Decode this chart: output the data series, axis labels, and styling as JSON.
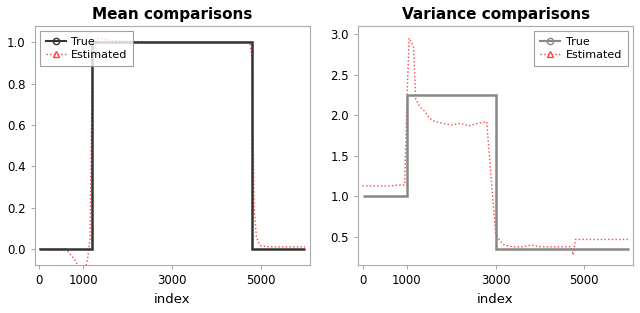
{
  "left_title": "Mean comparisons",
  "right_title": "Variance comparisons",
  "xlabel": "index",
  "xmax": 6000,
  "xlim": [
    -100,
    6100
  ],
  "xticks": [
    0,
    1000,
    3000,
    5000
  ],
  "mean_true_x": [
    0,
    1200,
    1200,
    4800,
    4800,
    6000
  ],
  "mean_true_y": [
    0.0,
    0.0,
    1.0,
    1.0,
    0.0,
    0.0
  ],
  "mean_ylim": [
    -0.08,
    1.08
  ],
  "mean_yticks": [
    0.0,
    0.2,
    0.4,
    0.6,
    0.8,
    1.0
  ],
  "mean_est_x": [
    0,
    100,
    300,
    600,
    800,
    900,
    1000,
    1050,
    1100,
    1150,
    1200,
    1300,
    1400,
    1600,
    2000,
    2500,
    3000,
    3500,
    4000,
    4500,
    4700,
    4750,
    4800,
    4850,
    4900,
    4950,
    5000,
    5100,
    5200,
    5500,
    5800,
    6000
  ],
  "mean_est_y": [
    0.0,
    0.0,
    0.0,
    0.0,
    -0.05,
    -0.09,
    -0.11,
    -0.09,
    -0.04,
    0.05,
    0.9,
    1.02,
    1.02,
    1.01,
    1.005,
    1.002,
    1.0,
    1.0,
    1.0,
    1.0,
    1.0,
    1.0,
    0.93,
    0.2,
    0.06,
    0.03,
    0.015,
    0.012,
    0.01,
    0.01,
    0.01,
    0.01
  ],
  "var_true_x": [
    0,
    1000,
    1000,
    3000,
    3000,
    6000
  ],
  "var_true_y": [
    1.0,
    1.0,
    2.25,
    2.25,
    0.35,
    0.35
  ],
  "var_ylim": [
    0.15,
    3.1
  ],
  "var_yticks": [
    0.5,
    1.0,
    1.5,
    2.0,
    2.5,
    3.0
  ],
  "var_est_x": [
    0,
    200,
    400,
    600,
    800,
    950,
    1000,
    1050,
    1100,
    1150,
    1200,
    1300,
    1400,
    1500,
    1600,
    1800,
    2000,
    2200,
    2400,
    2600,
    2800,
    3000,
    3100,
    3200,
    3400,
    3600,
    3800,
    4000,
    4200,
    4400,
    4600,
    4700,
    4750,
    4800,
    5000,
    5200,
    5500,
    5800,
    6000
  ],
  "var_est_y": [
    1.13,
    1.13,
    1.13,
    1.13,
    1.14,
    1.14,
    2.15,
    2.95,
    2.9,
    2.85,
    2.2,
    2.1,
    2.05,
    1.97,
    1.93,
    1.9,
    1.88,
    1.9,
    1.87,
    1.9,
    1.92,
    0.55,
    0.45,
    0.4,
    0.38,
    0.38,
    0.4,
    0.38,
    0.38,
    0.38,
    0.38,
    0.38,
    0.28,
    0.47,
    0.47,
    0.47,
    0.47,
    0.47,
    0.47
  ],
  "true_color_left": "#333333",
  "true_color_right": "#888888",
  "est_color": "#FF4444",
  "true_lw": 1.8,
  "est_lw": 1.0,
  "bg_color": "#ffffff",
  "spine_color": "#aaaaaa",
  "tick_color": "#000000"
}
